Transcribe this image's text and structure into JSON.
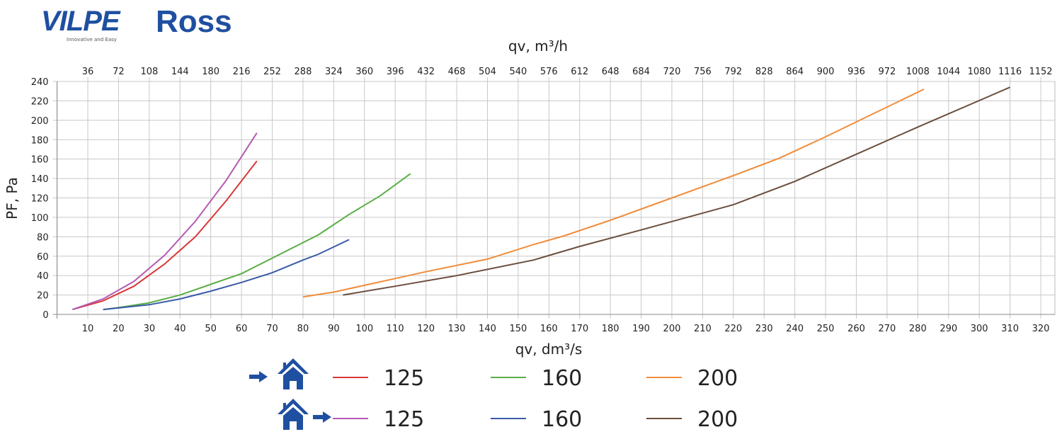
{
  "header": {
    "brand": "VILPE",
    "tagline": "Innovative and Easy",
    "product": "Ross"
  },
  "colors": {
    "brand": "#1f4fa0"
  },
  "chart_data": {
    "type": "line",
    "xlabel": "qv, dm³/s",
    "x2label": "qv, m³/h",
    "ylabel": "PF, Pa",
    "xlim": [
      0,
      320
    ],
    "ylim": [
      0,
      240
    ],
    "xticks": [
      10,
      20,
      30,
      40,
      50,
      60,
      70,
      80,
      90,
      100,
      110,
      120,
      130,
      140,
      150,
      160,
      170,
      180,
      190,
      200,
      210,
      220,
      230,
      240,
      250,
      260,
      270,
      280,
      290,
      300,
      310,
      320
    ],
    "x2ticks": [
      "36",
      "72",
      "108",
      "144",
      "180",
      "216",
      "252",
      "288",
      "324",
      "360",
      "396",
      "432",
      "468",
      "504",
      "540",
      "576",
      "612",
      "648",
      "684",
      "720",
      "756",
      "792",
      "828",
      "864",
      "900",
      "936",
      "972",
      "1008",
      "1044",
      "1080",
      "1116",
      "1152"
    ],
    "yticks": [
      0,
      20,
      40,
      60,
      80,
      100,
      120,
      140,
      160,
      180,
      200,
      220,
      240
    ],
    "grid": true,
    "series": [
      {
        "name": "125",
        "mode": "supply",
        "color": "#d9383a",
        "x": [
          5,
          15,
          25,
          35,
          45,
          55,
          65
        ],
        "y": [
          5,
          14,
          29,
          52,
          80,
          117,
          158
        ]
      },
      {
        "name": "160",
        "mode": "supply",
        "color": "#5aae45",
        "x": [
          15,
          20,
          30,
          40,
          50,
          60,
          70,
          85,
          95,
          105,
          115
        ],
        "y": [
          5,
          7,
          12,
          20,
          31,
          42,
          58,
          82,
          103,
          122,
          145
        ]
      },
      {
        "name": "200",
        "mode": "supply",
        "color": "#f08c3a",
        "x": [
          80,
          90,
          100,
          110,
          120,
          140,
          155,
          165,
          180,
          200,
          220,
          235,
          250,
          282
        ],
        "y": [
          18,
          23,
          30,
          37,
          44,
          57,
          72,
          81,
          97,
          120,
          143,
          161,
          183,
          232
        ]
      },
      {
        "name": "125",
        "mode": "exhaust",
        "color": "#b45ab4",
        "x": [
          5,
          15,
          25,
          35,
          45,
          55,
          65
        ],
        "y": [
          5,
          16,
          34,
          61,
          96,
          138,
          187
        ]
      },
      {
        "name": "160",
        "mode": "exhaust",
        "color": "#3a5aa8",
        "x": [
          15,
          30,
          40,
          50,
          60,
          70,
          80,
          85,
          95
        ],
        "y": [
          5,
          10,
          16,
          24,
          33,
          43,
          56,
          62,
          77
        ]
      },
      {
        "name": "200",
        "mode": "exhaust",
        "color": "#6b4e3d",
        "x": [
          93,
          110,
          130,
          155,
          170,
          190,
          220,
          240,
          260,
          280,
          310
        ],
        "y": [
          20,
          29,
          40,
          56,
          70,
          87,
          113,
          137,
          165,
          193,
          234
        ]
      }
    ],
    "legend": {
      "placement": "bottom",
      "rows": [
        "supply",
        "exhaust"
      ]
    }
  }
}
